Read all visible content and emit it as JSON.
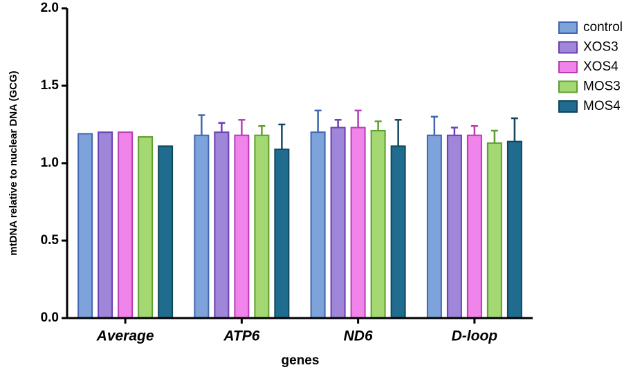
{
  "chart_data": {
    "type": "bar",
    "y_label": "mtDNA relative to nuclear DNA (GCG)",
    "x_label": "genes",
    "categories": [
      "Average",
      "ATP6",
      "ND6",
      "D-loop"
    ],
    "series": [
      {
        "name": "control",
        "color": "#7ea3da",
        "edge": "#3f66b0",
        "values": [
          1.19,
          1.18,
          1.2,
          1.18
        ],
        "errors": [
          null,
          0.13,
          0.14,
          0.12
        ]
      },
      {
        "name": "XOS3",
        "color": "#9f86d8",
        "edge": "#6a3fb5",
        "values": [
          1.2,
          1.2,
          1.23,
          1.18
        ],
        "errors": [
          null,
          0.06,
          0.05,
          0.05
        ]
      },
      {
        "name": "XOS4",
        "color": "#f084ea",
        "edge": "#b83cb2",
        "values": [
          1.2,
          1.18,
          1.23,
          1.18
        ],
        "errors": [
          null,
          0.1,
          0.11,
          0.06
        ]
      },
      {
        "name": "MOS3",
        "color": "#a3d873",
        "edge": "#5f9e2e",
        "values": [
          1.17,
          1.18,
          1.21,
          1.13
        ],
        "errors": [
          null,
          0.06,
          0.06,
          0.08
        ]
      },
      {
        "name": "MOS4",
        "color": "#1f6c8e",
        "edge": "#10465e",
        "values": [
          1.11,
          1.09,
          1.11,
          1.14
        ],
        "errors": [
          null,
          0.16,
          0.17,
          0.15
        ]
      }
    ],
    "ylim": [
      0,
      2.0
    ],
    "yticks": [
      {
        "value": 0,
        "label": "0.0"
      },
      0.5,
      {
        "value": 1,
        "label": "1.0"
      },
      1.5,
      {
        "value": 2,
        "label": "2.0"
      }
    ]
  }
}
